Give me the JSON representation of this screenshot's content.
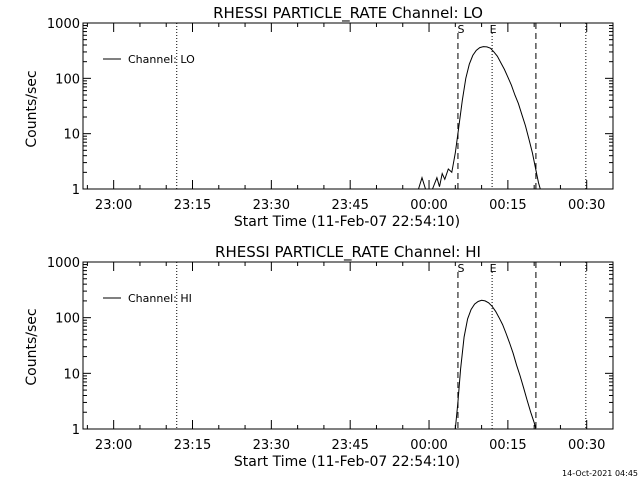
{
  "chart_data": [
    {
      "type": "line",
      "title": "RHESSI PARTICLE_RATE Channel: LO",
      "xlabel": "Start Time (11-Feb-07 22:54:10)",
      "ylabel": "Counts/sec",
      "y_scale": "log",
      "ylim": [
        1,
        1000
      ],
      "xlim": [
        "22:54:10",
        "00:35:00"
      ],
      "y_ticks": [
        "1",
        "10",
        "100",
        "1000"
      ],
      "x_ticks": [
        "23:00",
        "23:15",
        "23:30",
        "23:45",
        "00:00",
        "00:15",
        "00:30"
      ],
      "legend": {
        "position": "top-left",
        "entries": [
          "Channel: LO"
        ]
      },
      "markers": [
        {
          "label": "S",
          "time": "00:05:30",
          "style": "dashed"
        },
        {
          "label": "E",
          "time": "00:12:00",
          "style": "dotted"
        }
      ],
      "boundaries": [
        {
          "time": "00:20:20",
          "style": "dashed"
        }
      ],
      "night_lines": [
        {
          "time": "23:12:00",
          "style": "dotted"
        },
        {
          "time": "00:29:50",
          "style": "dotted"
        }
      ],
      "series": [
        {
          "name": "Channel: LO",
          "points": [
            [
              "23:58:00",
              1.0
            ],
            [
              "23:58:40",
              1.6
            ],
            [
              "23:59:20",
              1.0
            ],
            [
              "00:00:40",
              1.0
            ],
            [
              "00:01:30",
              1.6
            ],
            [
              "00:02:00",
              1.1
            ],
            [
              "00:02:30",
              1.9
            ],
            [
              "00:03:00",
              1.5
            ],
            [
              "00:03:40",
              2.3
            ],
            [
              "00:04:20",
              2.0
            ],
            [
              "00:05:00",
              4.5
            ],
            [
              "00:05:30",
              10
            ],
            [
              "00:06:20",
              40
            ],
            [
              "00:07:00",
              100
            ],
            [
              "00:07:40",
              180
            ],
            [
              "00:08:20",
              260
            ],
            [
              "00:09:00",
              320
            ],
            [
              "00:09:40",
              360
            ],
            [
              "00:10:20",
              375
            ],
            [
              "00:11:00",
              370
            ],
            [
              "00:11:40",
              350
            ],
            [
              "00:12:20",
              300
            ],
            [
              "00:13:00",
              250
            ],
            [
              "00:13:40",
              190
            ],
            [
              "00:14:20",
              145
            ],
            [
              "00:15:00",
              105
            ],
            [
              "00:15:40",
              75
            ],
            [
              "00:16:20",
              50
            ],
            [
              "00:17:00",
              35
            ],
            [
              "00:17:40",
              22
            ],
            [
              "00:18:20",
              14
            ],
            [
              "00:19:00",
              8
            ],
            [
              "00:19:40",
              4.5
            ],
            [
              "00:20:20",
              2.2
            ],
            [
              "00:20:50",
              1.3
            ],
            [
              "00:21:10",
              1.0
            ]
          ]
        }
      ]
    },
    {
      "type": "line",
      "title": "RHESSI PARTICLE_RATE Channel: HI",
      "xlabel": "Start Time (11-Feb-07 22:54:10)",
      "ylabel": "Counts/sec",
      "y_scale": "log",
      "ylim": [
        1,
        1000
      ],
      "xlim": [
        "22:54:10",
        "00:35:00"
      ],
      "y_ticks": [
        "1",
        "10",
        "100",
        "1000"
      ],
      "x_ticks": [
        "23:00",
        "23:15",
        "23:30",
        "23:45",
        "00:00",
        "00:15",
        "00:30"
      ],
      "legend": {
        "position": "top-left",
        "entries": [
          "Channel: HI"
        ]
      },
      "markers": [
        {
          "label": "S",
          "time": "00:05:30",
          "style": "dashed"
        },
        {
          "label": "E",
          "time": "00:12:00",
          "style": "dotted"
        }
      ],
      "boundaries": [
        {
          "time": "00:20:20",
          "style": "dashed"
        }
      ],
      "night_lines": [
        {
          "time": "23:12:00",
          "style": "dotted"
        },
        {
          "time": "00:29:50",
          "style": "dotted"
        }
      ],
      "series": [
        {
          "name": "Channel: HI",
          "points": [
            [
              "00:05:00",
              1.0
            ],
            [
              "00:05:30",
              3.0
            ],
            [
              "00:06:00",
              12
            ],
            [
              "00:06:40",
              45
            ],
            [
              "00:07:20",
              95
            ],
            [
              "00:08:00",
              140
            ],
            [
              "00:08:40",
              175
            ],
            [
              "00:09:20",
              195
            ],
            [
              "00:10:00",
              205
            ],
            [
              "00:10:40",
              200
            ],
            [
              "00:11:20",
              185
            ],
            [
              "00:12:00",
              160
            ],
            [
              "00:12:40",
              130
            ],
            [
              "00:13:20",
              100
            ],
            [
              "00:14:00",
              75
            ],
            [
              "00:14:40",
              52
            ],
            [
              "00:15:20",
              35
            ],
            [
              "00:16:00",
              23
            ],
            [
              "00:16:40",
              14
            ],
            [
              "00:17:20",
              9
            ],
            [
              "00:18:00",
              5.5
            ],
            [
              "00:18:40",
              3.3
            ],
            [
              "00:19:20",
              2.0
            ],
            [
              "00:20:00",
              1.3
            ],
            [
              "00:20:20",
              1.0
            ]
          ]
        }
      ]
    }
  ],
  "timestamp": "14-Oct-2021 04:45"
}
